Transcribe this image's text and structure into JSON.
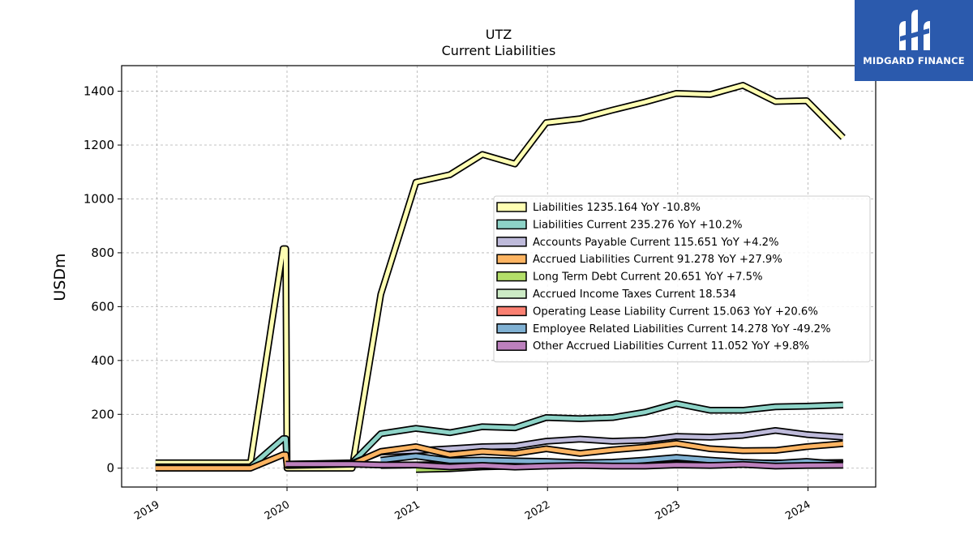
{
  "brand": {
    "name": "MIDGARD FINANCE",
    "bg_color": "#2b5aad"
  },
  "chart_data": {
    "type": "line",
    "title": "UTZ",
    "subtitle": "Current  Liabilities",
    "xlabel": "",
    "ylabel": "USDm",
    "x_ticks": [
      "2019",
      "2020",
      "2021",
      "2022",
      "2023",
      "2024"
    ],
    "y_ticks": [
      0,
      200,
      400,
      600,
      800,
      1000,
      1200,
      1400
    ],
    "ylim": [
      -70,
      1495
    ],
    "xlim": [
      2018.73,
      2024.52
    ],
    "grid": true,
    "legend_position": "center-right",
    "series": [
      {
        "name": "Liabilities  1235.164 YoY -10.8%",
        "color": "#ffffb3",
        "points": [
          [
            2018.99,
            20
          ],
          [
            2019.72,
            20
          ],
          [
            2019.97,
            815
          ],
          [
            2019.99,
            815
          ],
          [
            2020.0,
            0
          ],
          [
            2020.5,
            0
          ],
          [
            2020.72,
            645
          ],
          [
            2020.99,
            1062
          ],
          [
            2021.25,
            1090
          ],
          [
            2021.5,
            1165
          ],
          [
            2021.75,
            1130
          ],
          [
            2021.99,
            1283
          ],
          [
            2022.25,
            1298
          ],
          [
            2022.5,
            1330
          ],
          [
            2022.75,
            1360
          ],
          [
            2022.99,
            1392
          ],
          [
            2023.25,
            1388
          ],
          [
            2023.5,
            1422
          ],
          [
            2023.75,
            1362
          ],
          [
            2023.99,
            1365
          ],
          [
            2024.27,
            1228
          ]
        ]
      },
      {
        "name": "Liabilities Current  235.276 YoY +10.2%",
        "color": "#8dd3c7",
        "points": [
          [
            2018.99,
            5
          ],
          [
            2019.72,
            5
          ],
          [
            2019.97,
            110
          ],
          [
            2019.99,
            110
          ],
          [
            2020.0,
            15
          ],
          [
            2020.5,
            20
          ],
          [
            2020.72,
            128
          ],
          [
            2020.99,
            148
          ],
          [
            2021.25,
            132
          ],
          [
            2021.5,
            154
          ],
          [
            2021.75,
            150
          ],
          [
            2021.99,
            188
          ],
          [
            2022.25,
            184
          ],
          [
            2022.5,
            188
          ],
          [
            2022.75,
            208
          ],
          [
            2022.99,
            240
          ],
          [
            2023.25,
            215
          ],
          [
            2023.5,
            215
          ],
          [
            2023.75,
            228
          ],
          [
            2023.99,
            230
          ],
          [
            2024.27,
            235
          ]
        ]
      },
      {
        "name": "Accounts Payable Current  115.651 YoY +4.2%",
        "color": "#bebada",
        "points": [
          [
            2019.99,
            15
          ],
          [
            2020.5,
            18
          ],
          [
            2020.72,
            60
          ],
          [
            2020.99,
            65
          ],
          [
            2021.25,
            72
          ],
          [
            2021.5,
            80
          ],
          [
            2021.75,
            82
          ],
          [
            2021.99,
            100
          ],
          [
            2022.25,
            108
          ],
          [
            2022.5,
            100
          ],
          [
            2022.75,
            104
          ],
          [
            2022.99,
            118
          ],
          [
            2023.25,
            115
          ],
          [
            2023.5,
            122
          ],
          [
            2023.75,
            140
          ],
          [
            2023.99,
            125
          ],
          [
            2024.27,
            115
          ]
        ]
      },
      {
        "name": "Accrued Liabilities Current  91.278 YoY +27.9%",
        "color": "#fdb462",
        "points": [
          [
            2018.99,
            0
          ],
          [
            2019.72,
            0
          ],
          [
            2019.97,
            50
          ],
          [
            2019.99,
            50
          ],
          [
            2020.0,
            10
          ],
          [
            2020.5,
            15
          ],
          [
            2020.72,
            62
          ],
          [
            2020.99,
            80
          ],
          [
            2021.25,
            50
          ],
          [
            2021.5,
            62
          ],
          [
            2021.75,
            55
          ],
          [
            2021.99,
            72
          ],
          [
            2022.25,
            55
          ],
          [
            2022.5,
            68
          ],
          [
            2022.75,
            78
          ],
          [
            2022.99,
            92
          ],
          [
            2023.25,
            72
          ],
          [
            2023.5,
            65
          ],
          [
            2023.75,
            66
          ],
          [
            2023.99,
            80
          ],
          [
            2024.27,
            91
          ]
        ]
      },
      {
        "name": "Long Term Debt Current  20.651 YoY +7.5%",
        "color": "#b3de69",
        "points": [
          [
            2020.99,
            -5
          ],
          [
            2021.25,
            -2
          ],
          [
            2021.5,
            5
          ],
          [
            2021.75,
            8
          ],
          [
            2021.99,
            12
          ],
          [
            2022.25,
            14
          ],
          [
            2022.5,
            15
          ],
          [
            2022.75,
            16
          ],
          [
            2022.99,
            18
          ],
          [
            2023.25,
            18
          ],
          [
            2023.5,
            19
          ],
          [
            2023.75,
            19
          ],
          [
            2023.99,
            20
          ],
          [
            2024.27,
            21
          ]
        ]
      },
      {
        "name": "Accrued Income Taxes Current  18.534",
        "color": "#ccebc5",
        "points": [
          [
            2020.72,
            10
          ],
          [
            2020.99,
            12
          ],
          [
            2021.25,
            14
          ],
          [
            2021.5,
            15
          ],
          [
            2021.75,
            15
          ],
          [
            2021.99,
            16
          ],
          [
            2022.25,
            17
          ],
          [
            2022.5,
            17
          ],
          [
            2022.75,
            18
          ],
          [
            2022.99,
            18
          ],
          [
            2023.25,
            18
          ],
          [
            2023.5,
            18
          ],
          [
            2023.75,
            19
          ],
          [
            2023.99,
            18
          ],
          [
            2024.27,
            19
          ]
        ]
      },
      {
        "name": "Operating Lease Liability Current  15.063 YoY +20.6%",
        "color": "#fb8072",
        "points": [
          [
            2021.99,
            12
          ],
          [
            2022.25,
            12
          ],
          [
            2022.5,
            13
          ],
          [
            2022.75,
            13
          ],
          [
            2022.99,
            14
          ],
          [
            2023.25,
            14
          ],
          [
            2023.5,
            14
          ],
          [
            2023.75,
            13
          ],
          [
            2023.99,
            14
          ],
          [
            2024.27,
            15
          ]
        ]
      },
      {
        "name": "Employee Related Liabilities Current  14.278 YoY -49.2%",
        "color": "#80b1d3",
        "points": [
          [
            2020.72,
            30
          ],
          [
            2020.99,
            45
          ],
          [
            2021.25,
            28
          ],
          [
            2021.5,
            30
          ],
          [
            2021.75,
            27
          ],
          [
            2021.99,
            25
          ],
          [
            2022.25,
            20
          ],
          [
            2022.5,
            22
          ],
          [
            2022.75,
            30
          ],
          [
            2022.99,
            40
          ],
          [
            2023.25,
            30
          ],
          [
            2023.5,
            22
          ],
          [
            2023.75,
            18
          ],
          [
            2023.99,
            25
          ],
          [
            2024.27,
            14
          ]
        ]
      },
      {
        "name": "Other Accrued Liabilities Current  11.052 YoY +9.8%",
        "color": "#bc80bd",
        "points": [
          [
            2019.99,
            15
          ],
          [
            2020.5,
            15
          ],
          [
            2020.72,
            12
          ],
          [
            2020.99,
            12
          ],
          [
            2021.25,
            5
          ],
          [
            2021.5,
            10
          ],
          [
            2021.75,
            4
          ],
          [
            2021.99,
            8
          ],
          [
            2022.25,
            10
          ],
          [
            2022.5,
            8
          ],
          [
            2022.75,
            8
          ],
          [
            2022.99,
            12
          ],
          [
            2023.25,
            10
          ],
          [
            2023.5,
            14
          ],
          [
            2023.75,
            8
          ],
          [
            2023.99,
            10
          ],
          [
            2024.27,
            11
          ]
        ]
      }
    ]
  }
}
